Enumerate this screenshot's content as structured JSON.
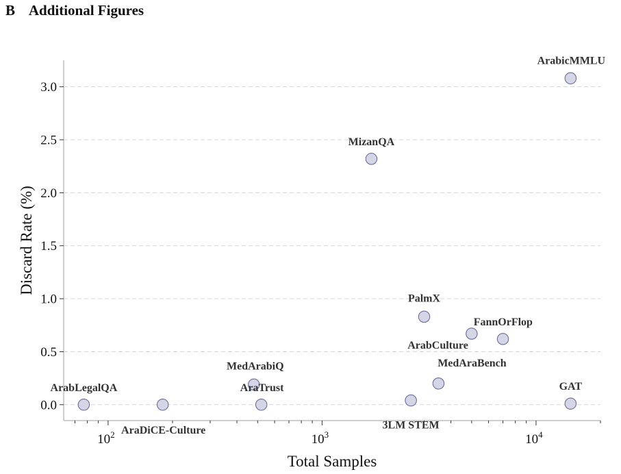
{
  "section": {
    "letter": "B",
    "title": "Additional Figures"
  },
  "chart_data": {
    "type": "scatter",
    "xlabel": "Total Samples",
    "ylabel": "Discard Rate (%)",
    "xscale": "log",
    "xlim": [
      62,
      20000
    ],
    "ylim": [
      -0.15,
      3.25
    ],
    "xticks": [
      {
        "value": 100,
        "label": "10",
        "exp": "2"
      },
      {
        "value": 1000,
        "label": "10",
        "exp": "3"
      },
      {
        "value": 10000,
        "label": "10",
        "exp": "4"
      }
    ],
    "yticks": [
      0.0,
      0.5,
      1.0,
      1.5,
      2.0,
      2.5,
      3.0
    ],
    "grid": "horizontal dashed",
    "marker_color": "#d4d6e6",
    "marker_edge_color": "#6a6a9e",
    "points": [
      {
        "name": "ArabLegalQA",
        "x": 77,
        "y": 0.0
      },
      {
        "name": "AraDiCE-Culture",
        "x": 180,
        "y": 0.0
      },
      {
        "name": "MedArabiQ",
        "x": 480,
        "y": 0.19
      },
      {
        "name": "AraTrust",
        "x": 520,
        "y": 0.0
      },
      {
        "name": "MizanQA",
        "x": 1700,
        "y": 2.32
      },
      {
        "name": "3LM STEM",
        "x": 2600,
        "y": 0.04
      },
      {
        "name": "PalmX",
        "x": 3000,
        "y": 0.83
      },
      {
        "name": "MedAraBench",
        "x": 3500,
        "y": 0.2
      },
      {
        "name": "FannOrFlop",
        "x": 5000,
        "y": 0.67
      },
      {
        "name": "ArabCulture",
        "x": 7000,
        "y": 0.62
      },
      {
        "name": "ArabicMMLU",
        "x": 14500,
        "y": 3.08
      },
      {
        "name": "GAT",
        "x": 14500,
        "y": 0.01
      }
    ]
  }
}
